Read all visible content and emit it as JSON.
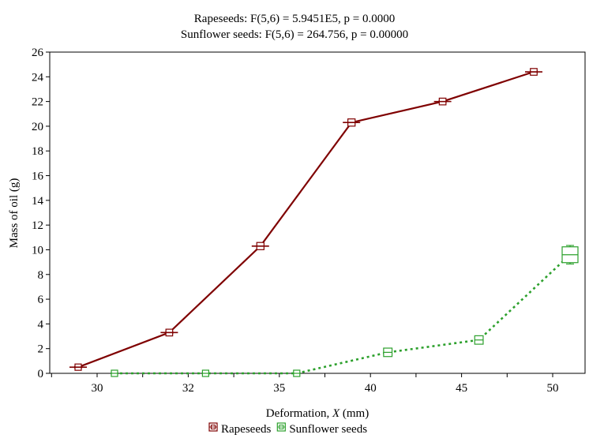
{
  "chart_data": {
    "type": "line",
    "title_lines": [
      "Rapeseeds:   F(5,6) = 5.9451E5, p = 0.0000",
      "Sunflower seeds:   F(5,6) = 264.756, p = 0.00000"
    ],
    "xlabel_prefix": "Deformation, ",
    "xlabel_var": "X",
    "xlabel_suffix": " (mm)",
    "ylabel": "Mass of oil (g)",
    "ylim": [
      0,
      26
    ],
    "yticks": [
      0,
      2,
      4,
      6,
      8,
      10,
      12,
      14,
      16,
      18,
      20,
      22,
      24,
      26
    ],
    "grid": false,
    "legend_position": "bottom-center",
    "series": [
      {
        "name": "Rapeseeds",
        "color": "#7f0000",
        "line_style": "solid",
        "marker": "square-with-bar",
        "categories": [
          "30",
          "32",
          "35",
          "40",
          "45",
          "50"
        ],
        "values": [
          0.5,
          3.3,
          10.3,
          20.3,
          22.0,
          24.4
        ],
        "errors": [
          0.05,
          0.08,
          0.1,
          0.1,
          0.08,
          0.08
        ]
      },
      {
        "name": "Sunflower seeds",
        "color": "#2ca02c",
        "line_style": "dotted",
        "marker": "square-with-bar",
        "categories": [
          "30",
          "32",
          "35",
          "40",
          "45",
          "50"
        ],
        "values": [
          0.0,
          0.0,
          0.0,
          1.7,
          2.7,
          9.6
        ],
        "errors": [
          0.02,
          0.02,
          0.02,
          0.15,
          0.15,
          0.75
        ]
      }
    ]
  }
}
